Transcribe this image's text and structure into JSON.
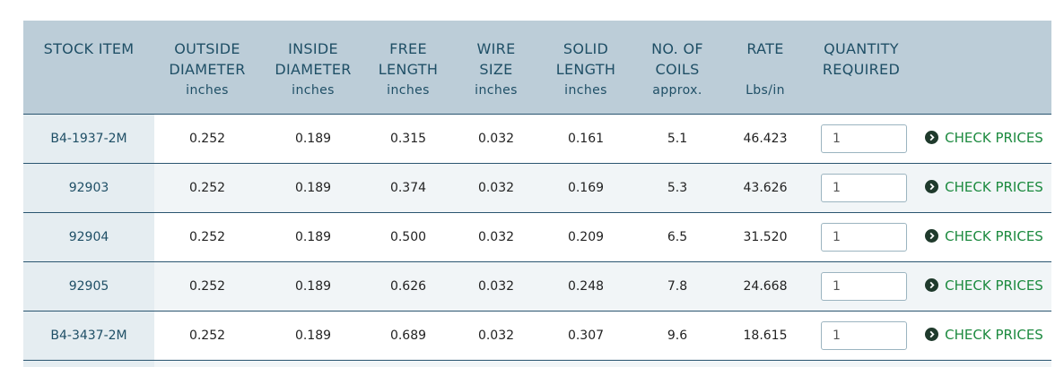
{
  "header": {
    "cols": [
      {
        "label": "STOCK ITEM",
        "unit": ""
      },
      {
        "label": "OUTSIDE\nDIAMETER",
        "unit": "inches"
      },
      {
        "label": "INSIDE\nDIAMETER",
        "unit": "inches"
      },
      {
        "label": "FREE\nLENGTH",
        "unit": "inches"
      },
      {
        "label": "WIRE\nSIZE",
        "unit": "inches"
      },
      {
        "label": "SOLID\nLENGTH",
        "unit": "inches"
      },
      {
        "label": "NO. OF\nCOILS",
        "unit": "approx."
      },
      {
        "label": "RATE",
        "unit": "Lbs/in"
      },
      {
        "label": "QUANTITY\nREQUIRED",
        "unit": ""
      }
    ]
  },
  "rows": [
    {
      "stock": "B4-1937-2M",
      "od": "0.252",
      "id": "0.189",
      "free": "0.315",
      "wire": "0.032",
      "solid": "0.161",
      "coils": "5.1",
      "rate": "46.423",
      "qty": "1",
      "action": "CHECK PRICES"
    },
    {
      "stock": "92903",
      "od": "0.252",
      "id": "0.189",
      "free": "0.374",
      "wire": "0.032",
      "solid": "0.169",
      "coils": "5.3",
      "rate": "43.626",
      "qty": "1",
      "action": "CHECK PRICES"
    },
    {
      "stock": "92904",
      "od": "0.252",
      "id": "0.189",
      "free": "0.500",
      "wire": "0.032",
      "solid": "0.209",
      "coils": "6.5",
      "rate": "31.520",
      "qty": "1",
      "action": "CHECK PRICES"
    },
    {
      "stock": "92905",
      "od": "0.252",
      "id": "0.189",
      "free": "0.626",
      "wire": "0.032",
      "solid": "0.248",
      "coils": "7.8",
      "rate": "24.668",
      "qty": "1",
      "action": "CHECK PRICES"
    },
    {
      "stock": "B4-3437-2M",
      "od": "0.252",
      "id": "0.189",
      "free": "0.689",
      "wire": "0.032",
      "solid": "0.307",
      "coils": "9.6",
      "rate": "18.615",
      "qty": "1",
      "action": "CHECK PRICES"
    }
  ],
  "colors": {
    "header_bg": "#bccdd8",
    "header_text": "#1f4f66",
    "accent_green": "#1c8a3f",
    "row_border": "#2a5570"
  }
}
